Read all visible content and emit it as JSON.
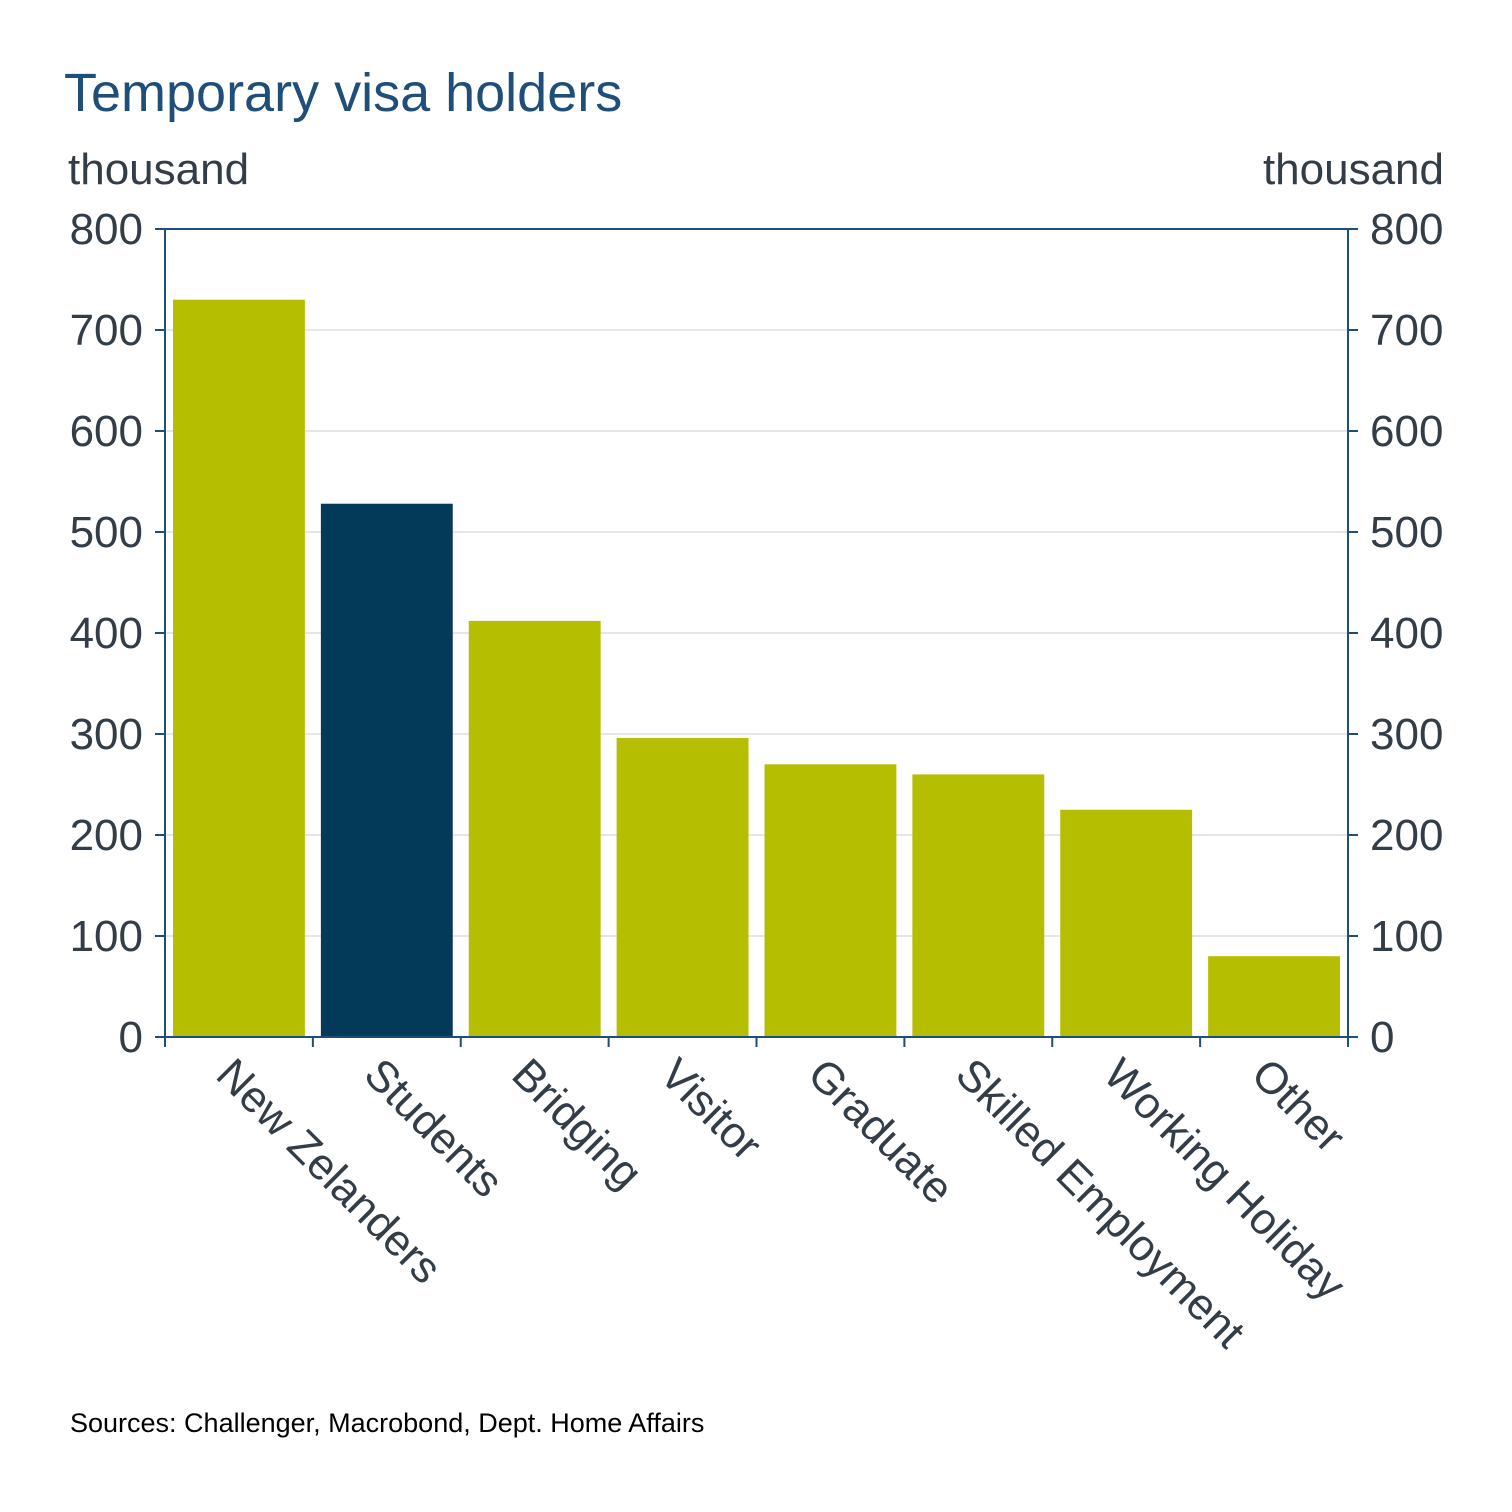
{
  "title": "Temporary visa holders",
  "y_unit_left": "thousand",
  "y_unit_right": "thousand",
  "source": "Sources: Challenger, Macrobond, Dept. Home Affairs",
  "colors": {
    "bar_default": "#b5be00",
    "bar_highlight": "#033a5a",
    "axis": "#1f4e79",
    "grid": "#cccccc",
    "text": "#333d47"
  },
  "chart_data": {
    "type": "bar",
    "title": "Temporary visa holders",
    "xlabel": "",
    "ylabel": "thousand",
    "ylabel_right": "thousand",
    "ylim": [
      0,
      800
    ],
    "yticks": [
      "0",
      "100",
      "200",
      "300",
      "400",
      "500",
      "600",
      "700",
      "800"
    ],
    "grid": true,
    "legend": "none",
    "categories": [
      "New Zelanders",
      "Students",
      "Bridging",
      "Visitor",
      "Graduate",
      "Skilled Employment",
      "Working Holiday",
      "Other"
    ],
    "values": [
      730,
      528,
      412,
      296,
      270,
      260,
      225,
      80
    ],
    "highlighted_category": "Students"
  }
}
